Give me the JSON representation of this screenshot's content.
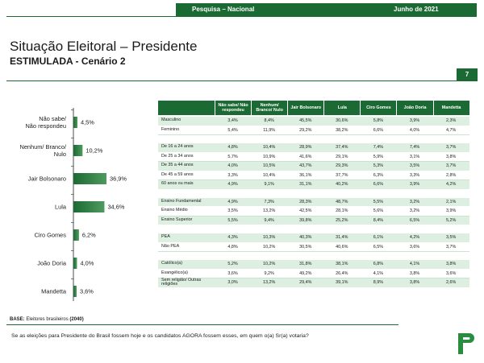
{
  "header": {
    "survey": "Pesquisa – Nacional",
    "date": "Junho de 2021"
  },
  "title": "Situação Eleitoral – Presidente",
  "subtitle": "ESTIMULADA - Cenário 2",
  "page_number": "7",
  "chart_data": {
    "type": "bar",
    "orientation": "horizontal",
    "categories": [
      "Não sabe/ Não respondeu",
      "Nenhum/ Branco/ Nulo",
      "Jair Bolsonaro",
      "Lula",
      "Ciro Gomes",
      "João Doria",
      "Mandetta"
    ],
    "values": [
      4.5,
      10.2,
      36.9,
      34.6,
      6.2,
      4.0,
      3.6
    ],
    "value_labels": [
      "4,5%",
      "10,2%",
      "36,9%",
      "34,6%",
      "6,2%",
      "4,0%",
      "3,6%"
    ],
    "title": "",
    "xlabel": "",
    "ylabel": "",
    "xlim": [
      0,
      40
    ],
    "grid": false,
    "legend": "none",
    "colors": {
      "bar": "#1b6a34",
      "bar_highlight": "#4f9a5e"
    }
  },
  "table": {
    "columns": [
      "Não sabe/ Não respondeu",
      "Nenhum/ Branco/ Nulo",
      "Jair Bolsonaro",
      "Lula",
      "Ciro Gomes",
      "João Doria",
      "Mandetta"
    ],
    "groups": [
      {
        "rows": [
          {
            "label": "Masculino",
            "values": [
              "3,4%",
              "8,4%",
              "45,5%",
              "30,6%",
              "5,8%",
              "3,9%",
              "2,3%"
            ]
          },
          {
            "label": "Feminino",
            "values": [
              "5,4%",
              "11,9%",
              "29,2%",
              "38,2%",
              "6,6%",
              "4,0%",
              "4,7%"
            ]
          }
        ]
      },
      {
        "rows": [
          {
            "label": "De 16 a 24 anos",
            "values": [
              "4,8%",
              "10,4%",
              "28,9%",
              "37,4%",
              "7,4%",
              "7,4%",
              "3,7%"
            ]
          },
          {
            "label": "De 25 a 34 anos",
            "values": [
              "5,7%",
              "10,9%",
              "41,6%",
              "29,1%",
              "5,9%",
              "3,1%",
              "3,8%"
            ]
          },
          {
            "label": "De 35 a 44 anos",
            "values": [
              "4,0%",
              "10,5%",
              "43,7%",
              "29,3%",
              "5,3%",
              "3,5%",
              "3,7%"
            ]
          },
          {
            "label": "De 45 a 59 anos",
            "values": [
              "3,3%",
              "10,4%",
              "36,1%",
              "37,7%",
              "6,3%",
              "3,3%",
              "2,8%"
            ]
          },
          {
            "label": "60 anos ou mais",
            "values": [
              "4,9%",
              "9,1%",
              "31,1%",
              "40,2%",
              "6,6%",
              "3,9%",
              "4,2%"
            ]
          }
        ]
      },
      {
        "rows": [
          {
            "label": "Ensino Fundamental",
            "values": [
              "4,9%",
              "7,3%",
              "28,3%",
              "48,7%",
              "5,5%",
              "3,2%",
              "2,1%"
            ]
          },
          {
            "label": "Ensino Médio",
            "values": [
              "3,5%",
              "13,2%",
              "42,5%",
              "28,1%",
              "5,6%",
              "3,2%",
              "3,9%"
            ]
          },
          {
            "label": "Ensino Superior",
            "values": [
              "5,5%",
              "9,4%",
              "39,8%",
              "25,2%",
              "8,4%",
              "6,5%",
              "5,2%"
            ]
          }
        ]
      },
      {
        "rows": [
          {
            "label": "PEA",
            "values": [
              "4,3%",
              "10,3%",
              "40,3%",
              "31,4%",
              "6,1%",
              "4,2%",
              "3,5%"
            ]
          },
          {
            "label": "Não PEA",
            "values": [
              "4,8%",
              "10,2%",
              "30,5%",
              "40,6%",
              "6,5%",
              "3,6%",
              "3,7%"
            ]
          }
        ]
      },
      {
        "rows": [
          {
            "label": "Católico(a)",
            "values": [
              "5,2%",
              "10,2%",
              "31,8%",
              "38,1%",
              "6,8%",
              "4,1%",
              "3,8%"
            ]
          },
          {
            "label": "Evangélico(a)",
            "values": [
              "3,6%",
              "9,2%",
              "49,2%",
              "26,4%",
              "4,1%",
              "3,8%",
              "3,6%"
            ]
          },
          {
            "label": "Sem religião/ Outras religiões",
            "values": [
              "3,0%",
              "13,2%",
              "29,4%",
              "39,1%",
              "8,9%",
              "3,8%",
              "2,6%"
            ]
          }
        ]
      }
    ]
  },
  "base": {
    "label": "BASE:",
    "text": " Eleitores brasileiros ",
    "count": "(2040)"
  },
  "question": "Se as eleições para Presidente do Brasil fossem hoje e os candidatos AGORA fossem esses, em quem o(a) Sr(a) votaria?"
}
